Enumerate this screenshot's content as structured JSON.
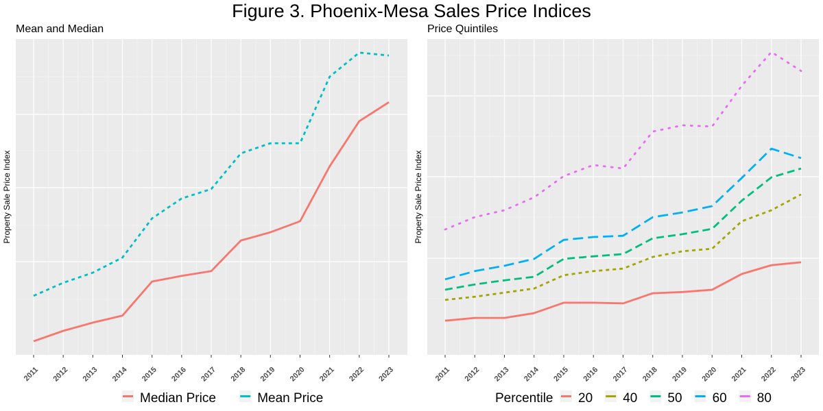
{
  "title": "Figure 3. Phoenix-Mesa Sales Price Indices",
  "chart_data": [
    {
      "type": "line",
      "title": "Mean and Median",
      "xlabel": "",
      "ylabel": "Property Sale Price Index",
      "x": [
        "2011",
        "2012",
        "2013",
        "2014",
        "2015",
        "2016",
        "2017",
        "2018",
        "2019",
        "2020",
        "2021",
        "2022",
        "2023"
      ],
      "ylim": [
        0,
        100
      ],
      "y_tick_labels_shown": false,
      "grid": true,
      "legend_position": "bottom",
      "legend_title": "",
      "series": [
        {
          "name": "Median Price",
          "color": "#F8766D",
          "linetype": "solid",
          "values": [
            4.3,
            7.6,
            10.2,
            12.4,
            23.2,
            25.0,
            26.5,
            36.2,
            38.8,
            42.3,
            59.7,
            74.0,
            80.0
          ]
        },
        {
          "name": "Mean Price",
          "color": "#00BFC4",
          "linetype": "dashed",
          "values": [
            18.7,
            22.8,
            26.0,
            30.8,
            43.2,
            49.5,
            52.5,
            63.8,
            67.0,
            67.0,
            88.1,
            95.7,
            94.8
          ]
        }
      ]
    },
    {
      "type": "line",
      "title": "Price Quintiles",
      "xlabel": "",
      "ylabel": "Property Sale Price Index",
      "x": [
        "2011",
        "2012",
        "2013",
        "2014",
        "2015",
        "2016",
        "2017",
        "2018",
        "2019",
        "2020",
        "2021",
        "2022",
        "2023"
      ],
      "ylim": [
        0,
        100
      ],
      "y_tick_labels_shown": false,
      "grid": true,
      "legend_position": "bottom",
      "legend_title": "Percentile",
      "series": [
        {
          "name": "20",
          "color": "#F8766D",
          "linetype": "solid",
          "values": [
            10.8,
            11.7,
            11.7,
            13.2,
            16.5,
            16.5,
            16.3,
            19.5,
            19.9,
            20.6,
            25.6,
            28.4,
            29.3
          ]
        },
        {
          "name": "40",
          "color": "#A3A500",
          "linetype": "dashed",
          "values": [
            17.4,
            18.4,
            19.7,
            21.0,
            25.2,
            26.5,
            27.3,
            31.0,
            32.8,
            33.6,
            42.3,
            45.8,
            50.8
          ]
        },
        {
          "name": "50",
          "color": "#00BF7D",
          "linetype": "longdash",
          "values": [
            20.6,
            22.3,
            23.6,
            24.7,
            30.4,
            31.2,
            31.9,
            36.9,
            38.2,
            39.9,
            48.8,
            56.2,
            59.0
          ]
        },
        {
          "name": "60",
          "color": "#00B0F6",
          "linetype": "longerdash",
          "values": [
            23.9,
            26.5,
            28.2,
            30.4,
            36.4,
            37.3,
            37.7,
            43.6,
            45.1,
            47.1,
            56.0,
            65.3,
            62.3
          ]
        },
        {
          "name": "80",
          "color": "#E76BF3",
          "linetype": "dotted",
          "values": [
            39.7,
            43.6,
            45.8,
            49.9,
            56.6,
            60.1,
            59.0,
            70.7,
            72.7,
            72.3,
            85.2,
            95.9,
            89.9
          ]
        }
      ]
    }
  ]
}
